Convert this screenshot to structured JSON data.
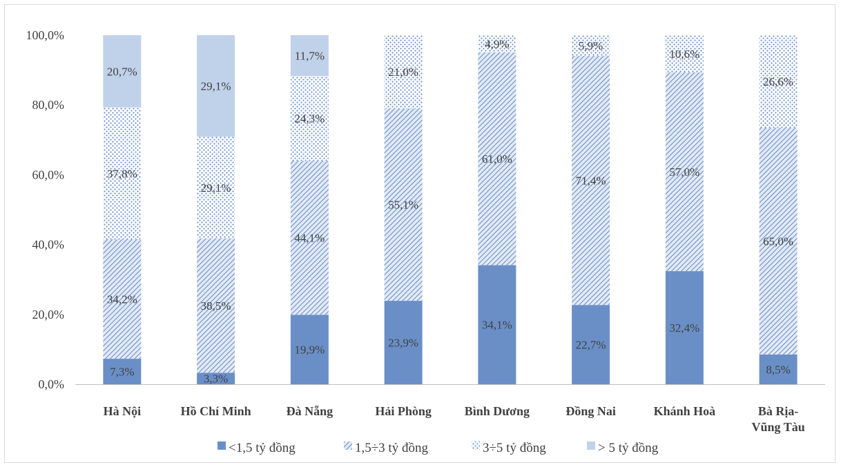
{
  "chart_data": {
    "type": "bar",
    "stacked": true,
    "categories": [
      "Hà Nội",
      "Hồ Chí Minh",
      "Đà Nẵng",
      "Hải Phòng",
      "Bình Dương",
      "Đồng Nai",
      "Khánh Hoà",
      "Bà Rịa-Vũng Tàu"
    ],
    "category_lines": [
      [
        "Hà Nội"
      ],
      [
        "Hồ Chí Minh"
      ],
      [
        "Đà Nẵng"
      ],
      [
        "Hải Phòng"
      ],
      [
        "Bình Dương"
      ],
      [
        "Đồng Nai"
      ],
      [
        "Khánh Hoà"
      ],
      [
        "Bà Rịa-",
        "Vũng Tàu"
      ]
    ],
    "series": [
      {
        "name": "<1,5 tỷ đồng",
        "values": [
          7.3,
          3.3,
          19.9,
          23.9,
          34.1,
          22.7,
          32.4,
          8.5
        ],
        "labels": [
          "7,3%",
          "3,3%",
          "19,9%",
          "23,9%",
          "34,1%",
          "22,7%",
          "32,4%",
          "8,5%"
        ],
        "color": "#6a8fc7",
        "pattern": "solid"
      },
      {
        "name": "1,5÷3 tỷ đồng",
        "values": [
          34.2,
          38.5,
          44.1,
          55.1,
          61.0,
          71.4,
          57.0,
          65.0
        ],
        "labels": [
          "34,2%",
          "38,5%",
          "44,1%",
          "55,1%",
          "61,0%",
          "71,4%",
          "57,0%",
          "65,0%"
        ],
        "color": "#6a8fc7",
        "pattern": "diagonal"
      },
      {
        "name": "3÷5 tỷ đồng",
        "values": [
          37.8,
          29.1,
          24.3,
          21.0,
          4.9,
          5.9,
          10.6,
          26.6
        ],
        "labels": [
          "37,8%",
          "29,1%",
          "24,3%",
          "21,0%",
          "4,9%",
          "5,9%",
          "10,6%",
          "26,6%"
        ],
        "color": "#6a8fc7",
        "pattern": "dots"
      },
      {
        "name": "> 5 tỷ đồng",
        "values": [
          20.7,
          29.1,
          11.7,
          0,
          0,
          0,
          0,
          0
        ],
        "labels": [
          "20,7%",
          "29,1%",
          "11,7%",
          "",
          "",
          "",
          "",
          ""
        ],
        "color": "#c0d2ea",
        "pattern": "solid"
      }
    ],
    "yticks": [
      "0,0%",
      "20,0%",
      "40,0%",
      "60,0%",
      "80,0%",
      "100,0%"
    ],
    "ylim": [
      0,
      100
    ],
    "grid": false,
    "legend_position": "bottom"
  }
}
